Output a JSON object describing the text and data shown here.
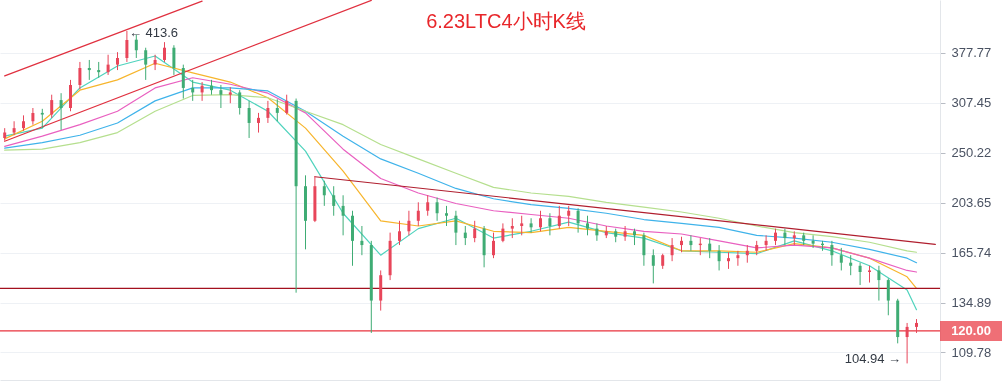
{
  "chart_data": {
    "type": "candlestick",
    "title": "6.23LTC4小时K线",
    "categories": [
      null,
      null,
      null,
      null,
      null,
      null,
      null,
      null,
      null,
      null,
      null,
      null,
      null,
      null,
      null,
      null,
      null,
      null,
      null,
      null,
      null,
      null,
      null,
      null,
      null,
      null,
      null,
      null,
      null,
      null,
      null,
      null,
      null,
      null,
      null,
      null,
      null,
      null,
      null,
      null,
      null,
      null,
      null,
      null,
      null,
      null,
      null,
      null,
      null,
      null,
      null,
      null,
      null,
      null,
      null,
      null,
      null,
      null,
      null,
      null,
      null,
      null,
      null,
      null,
      null,
      null,
      null,
      null,
      null,
      null,
      null,
      null,
      null,
      null,
      null,
      null,
      null,
      null,
      null,
      null,
      null,
      null,
      null,
      null,
      null,
      null,
      null,
      null,
      null,
      null,
      null,
      null,
      null,
      null,
      null,
      null,
      null,
      null,
      null,
      null
    ],
    "ohlc": [
      [
        266,
        277,
        263,
        272
      ],
      [
        272,
        285,
        269,
        277
      ],
      [
        277,
        292,
        274,
        285
      ],
      [
        285,
        301,
        281,
        295
      ],
      [
        295,
        300,
        277,
        293
      ],
      [
        293,
        318,
        289,
        311
      ],
      [
        311,
        320,
        275,
        301
      ],
      [
        301,
        338,
        297,
        331
      ],
      [
        331,
        364,
        325,
        355
      ],
      [
        355,
        367,
        338,
        352
      ],
      [
        352,
        364,
        341,
        349
      ],
      [
        349,
        375,
        345,
        360
      ],
      [
        360,
        379,
        352,
        370
      ],
      [
        370,
        413.6,
        364,
        398.6
      ],
      [
        399,
        407,
        370,
        382
      ],
      [
        382,
        386,
        338,
        360
      ],
      [
        360,
        375,
        352,
        367
      ],
      [
        367,
        395,
        364,
        386
      ],
      [
        386,
        390,
        345,
        355
      ],
      [
        355,
        360,
        313,
        327
      ],
      [
        327,
        338,
        310,
        321
      ],
      [
        321,
        335,
        310,
        330
      ],
      [
        330,
        338,
        318,
        324
      ],
      [
        324,
        331,
        301,
        318
      ],
      [
        318,
        328,
        307,
        321
      ],
      [
        321,
        324,
        293,
        301
      ],
      [
        301,
        310,
        266,
        283
      ],
      [
        283,
        295,
        272,
        289
      ],
      [
        289,
        310,
        283,
        301
      ],
      [
        301,
        312,
        285,
        295
      ],
      [
        295,
        318,
        293,
        310
      ],
      [
        310,
        313,
        140.5,
        218
      ],
      [
        218,
        228,
        168,
        189
      ],
      [
        189,
        227,
        188,
        218
      ],
      [
        218,
        223,
        201,
        210
      ],
      [
        210,
        218,
        193,
        201
      ],
      [
        201,
        210,
        178,
        193
      ],
      [
        193,
        197,
        157,
        174
      ],
      [
        174,
        185,
        164,
        171
      ],
      [
        171,
        174,
        119,
        136
      ],
      [
        136,
        154,
        130.5,
        151
      ],
      [
        151,
        180,
        148,
        174
      ],
      [
        174,
        189,
        171,
        181
      ],
      [
        181,
        197,
        178,
        189
      ],
      [
        189,
        204,
        185,
        197
      ],
      [
        197,
        210,
        193,
        204
      ],
      [
        204,
        208,
        189,
        195
      ],
      [
        195,
        201,
        185,
        193
      ],
      [
        193,
        197,
        171,
        180
      ],
      [
        180,
        185,
        171,
        176
      ],
      [
        176,
        189,
        173,
        183
      ],
      [
        183,
        185,
        156,
        164
      ],
      [
        164,
        180,
        162,
        174
      ],
      [
        174,
        187,
        173,
        183
      ],
      [
        183,
        191,
        176,
        185
      ],
      [
        185,
        193,
        178,
        187
      ],
      [
        187,
        191,
        180,
        184
      ],
      [
        184,
        197,
        181,
        191
      ],
      [
        191,
        195,
        178,
        185
      ],
      [
        185,
        201,
        183,
        193
      ],
      [
        193,
        201,
        185,
        197
      ],
      [
        197,
        199,
        180,
        187
      ],
      [
        187,
        193,
        178,
        183
      ],
      [
        183,
        187,
        174,
        178
      ],
      [
        178,
        185,
        176,
        181
      ],
      [
        181,
        183,
        173,
        177
      ],
      [
        177,
        185,
        174,
        181
      ],
      [
        181,
        183,
        171,
        178
      ],
      [
        178,
        180,
        157,
        164
      ],
      [
        164,
        168,
        146,
        157
      ],
      [
        157,
        165,
        155,
        164
      ],
      [
        164,
        176,
        160,
        171
      ],
      [
        171,
        177,
        166,
        174
      ],
      [
        174,
        178,
        167,
        171
      ],
      [
        171,
        176,
        164,
        172
      ],
      [
        172,
        176,
        162,
        167
      ],
      [
        167,
        171,
        154,
        160
      ],
      [
        160,
        166,
        155,
        162
      ],
      [
        162,
        167,
        157,
        164
      ],
      [
        164,
        171,
        159,
        167
      ],
      [
        167,
        174,
        164,
        171
      ],
      [
        171,
        178,
        167,
        174
      ],
      [
        174,
        183,
        171,
        180
      ],
      [
        180,
        183,
        171,
        176
      ],
      [
        176,
        181,
        171,
        178
      ],
      [
        178,
        180,
        171,
        174
      ],
      [
        174,
        178,
        169,
        172
      ],
      [
        172,
        174,
        167,
        171
      ],
      [
        171,
        174,
        157,
        164
      ],
      [
        164,
        169,
        154,
        159
      ],
      [
        159,
        164,
        151,
        157
      ],
      [
        157,
        159,
        145,
        153
      ],
      [
        153,
        157,
        146.5,
        154
      ],
      [
        154,
        157,
        136,
        148
      ],
      [
        148,
        149,
        128,
        136
      ],
      [
        136,
        137,
        114,
        117
      ],
      [
        117,
        124,
        104.94,
        122
      ],
      [
        122,
        126,
        119,
        124
      ],
      null,
      null
    ],
    "series": [
      {
        "type": "line",
        "color": "#4fd3bd",
        "values": [
          268,
          null,
          null,
          null,
          277,
          null,
          null,
          null,
          327,
          null,
          null,
          null,
          358,
          null,
          null,
          null,
          373,
          null,
          null,
          null,
          335,
          null,
          null,
          null,
          324,
          null,
          null,
          null,
          297,
          null,
          null,
          null,
          252,
          null,
          null,
          null,
          195,
          null,
          null,
          null,
          164,
          null,
          null,
          null,
          183,
          null,
          null,
          null,
          191,
          null,
          null,
          null,
          176,
          null,
          null,
          null,
          181,
          null,
          null,
          null,
          188,
          null,
          null,
          null,
          180,
          null,
          null,
          null,
          176,
          null,
          null,
          null,
          167,
          null,
          null,
          null,
          166,
          null,
          null,
          null,
          165,
          null,
          null,
          null,
          174,
          null,
          null,
          null,
          167,
          null,
          null,
          null,
          157,
          null,
          null,
          null,
          142,
          131,
          null,
          null
        ]
      },
      {
        "type": "line",
        "color": "#f7b52c",
        "values": [
          265,
          null,
          null,
          null,
          285,
          null,
          null,
          null,
          324,
          null,
          null,
          null,
          338,
          null,
          null,
          null,
          362,
          null,
          null,
          null,
          348,
          null,
          null,
          null,
          335,
          null,
          null,
          null,
          314,
          null,
          null,
          null,
          277,
          null,
          null,
          null,
          232,
          null,
          null,
          null,
          189,
          null,
          null,
          null,
          185,
          null,
          null,
          null,
          189,
          null,
          null,
          null,
          181,
          null,
          null,
          null,
          180,
          null,
          null,
          null,
          184,
          null,
          null,
          null,
          181,
          null,
          null,
          null,
          178,
          null,
          null,
          null,
          167,
          null,
          null,
          null,
          167,
          null,
          null,
          null,
          166,
          null,
          null,
          null,
          172,
          null,
          null,
          null,
          169,
          null,
          null,
          null,
          162,
          null,
          null,
          null,
          150,
          143,
          null,
          null
        ]
      },
      {
        "type": "line",
        "color": "#e960c0",
        "values": [
          257,
          null,
          null,
          null,
          268,
          null,
          null,
          null,
          281,
          null,
          null,
          null,
          297,
          null,
          null,
          null,
          327,
          null,
          null,
          null,
          341,
          null,
          null,
          null,
          332,
          null,
          null,
          null,
          320,
          null,
          null,
          null,
          295,
          null,
          null,
          null,
          254,
          null,
          null,
          null,
          225,
          null,
          null,
          null,
          212,
          null,
          null,
          null,
          203,
          null,
          null,
          null,
          197,
          null,
          null,
          null,
          194,
          null,
          null,
          null,
          191,
          null,
          null,
          null,
          185,
          null,
          null,
          null,
          181,
          null,
          null,
          null,
          179,
          null,
          null,
          null,
          174,
          null,
          null,
          null,
          169,
          null,
          null,
          null,
          171,
          null,
          null,
          null,
          169,
          null,
          null,
          null,
          162,
          null,
          null,
          null,
          154,
          153,
          null,
          null
        ]
      },
      {
        "type": "line",
        "color": "#3fb3ea",
        "values": [
          255,
          null,
          null,
          null,
          261,
          null,
          null,
          null,
          269,
          null,
          null,
          null,
          283,
          null,
          null,
          null,
          310,
          null,
          null,
          null,
          327,
          null,
          null,
          null,
          327,
          null,
          null,
          null,
          323,
          null,
          null,
          null,
          297,
          null,
          null,
          null,
          268,
          null,
          null,
          null,
          244,
          null,
          null,
          null,
          230,
          null,
          null,
          null,
          216,
          null,
          null,
          null,
          207,
          null,
          null,
          null,
          202,
          null,
          null,
          null,
          199,
          null,
          null,
          null,
          195,
          null,
          null,
          null,
          190,
          null,
          null,
          null,
          187,
          null,
          null,
          null,
          184,
          null,
          null,
          null,
          178,
          null,
          null,
          null,
          176,
          null,
          null,
          null,
          173,
          null,
          null,
          null,
          168,
          null,
          null,
          null,
          162,
          159,
          null,
          null
        ]
      },
      {
        "type": "line",
        "color": "#b5df8e",
        "values": [
          253,
          null,
          null,
          null,
          254,
          null,
          null,
          null,
          261,
          null,
          null,
          null,
          272,
          null,
          null,
          null,
          297,
          null,
          null,
          null,
          317,
          null,
          null,
          null,
          318,
          null,
          null,
          null,
          314,
          null,
          null,
          null,
          297,
          null,
          null,
          null,
          281,
          null,
          null,
          null,
          259,
          null,
          null,
          null,
          244,
          null,
          null,
          null,
          230,
          null,
          null,
          null,
          217,
          null,
          null,
          null,
          212,
          null,
          null,
          null,
          209,
          null,
          null,
          null,
          204,
          null,
          null,
          null,
          200,
          null,
          null,
          null,
          196,
          null,
          null,
          null,
          191,
          null,
          null,
          null,
          185,
          null,
          null,
          null,
          180,
          null,
          null,
          null,
          177,
          null,
          null,
          null,
          173,
          null,
          null,
          null,
          167,
          166,
          null,
          null
        ]
      },
      {
        "type": "line",
        "color": "#e0303f",
        "values": [
          343.6,
          null,
          null,
          null,
          null,
          null,
          null,
          null,
          null,
          null,
          null,
          null,
          null,
          null,
          null,
          null,
          null,
          null,
          null,
          null,
          null,
          467.8,
          null,
          null,
          null,
          null,
          null,
          null,
          null,
          null,
          null,
          null,
          null,
          null,
          null,
          null,
          null,
          null,
          null,
          null,
          null,
          null,
          null,
          null,
          null,
          null,
          null,
          null,
          null,
          null,
          null,
          null,
          null,
          null,
          null,
          null,
          null,
          null,
          null,
          null,
          null,
          null,
          null,
          null,
          null,
          null,
          null,
          null,
          null,
          null,
          null,
          null,
          null,
          null,
          null,
          null,
          null,
          null,
          null,
          null,
          null,
          null,
          null,
          null,
          null,
          null,
          null,
          null,
          null,
          null,
          null,
          null,
          null,
          null,
          null,
          null,
          null,
          null,
          null,
          null
        ]
      },
      {
        "type": "line",
        "color": "#e0303f",
        "values": [
          262.4,
          null,
          null,
          null,
          null,
          null,
          null,
          null,
          null,
          null,
          null,
          null,
          null,
          null,
          null,
          null,
          null,
          null,
          null,
          null,
          null,
          null,
          null,
          null,
          null,
          null,
          null,
          null,
          null,
          null,
          null,
          null,
          null,
          null,
          null,
          null,
          null,
          null,
          null,
          469.3,
          null,
          null,
          null,
          null,
          null,
          null,
          null,
          null,
          null,
          null,
          null,
          null,
          null,
          null,
          null,
          null,
          null,
          null,
          null,
          null,
          null,
          null,
          null,
          null,
          null,
          null,
          null,
          null,
          null,
          null,
          null,
          null,
          null,
          null,
          null,
          null,
          null,
          null,
          null,
          null,
          null,
          null,
          null,
          null,
          null,
          null,
          null,
          null,
          null,
          null,
          null,
          null,
          null,
          null,
          null,
          null,
          null,
          null,
          null,
          null
        ]
      },
      {
        "type": "line",
        "color": "#b01e2e",
        "values": [
          null,
          null,
          null,
          null,
          null,
          null,
          null,
          null,
          null,
          null,
          null,
          null,
          null,
          null,
          null,
          null,
          null,
          null,
          null,
          null,
          null,
          null,
          null,
          null,
          null,
          null,
          null,
          null,
          null,
          null,
          null,
          null,
          null,
          226.7,
          null,
          null,
          null,
          null,
          null,
          null,
          null,
          null,
          null,
          null,
          null,
          null,
          null,
          null,
          null,
          null,
          null,
          null,
          null,
          null,
          null,
          null,
          null,
          null,
          null,
          null,
          null,
          null,
          null,
          null,
          null,
          null,
          null,
          null,
          null,
          null,
          null,
          null,
          null,
          null,
          null,
          null,
          null,
          null,
          null,
          null,
          null,
          null,
          null,
          null,
          null,
          null,
          null,
          null,
          null,
          null,
          null,
          null,
          null,
          null,
          null,
          null,
          null,
          null,
          null,
          171.5
        ]
      }
    ],
    "ylim": [
      98,
      470
    ],
    "yticks": [
      109.78,
      134.89,
      165.74,
      203.65,
      250.22,
      307.45,
      377.77
    ],
    "log": true,
    "grid": "y",
    "tick_labels": "y",
    "ref_lines": [
      {
        "axis": "y",
        "value": 143,
        "color": "#a3101e"
      },
      {
        "axis": "y",
        "value": 120,
        "label": "120.00",
        "color": "#e8323c"
      }
    ],
    "annotations": [
      "← 413.6",
      "104.94 →"
    ]
  }
}
